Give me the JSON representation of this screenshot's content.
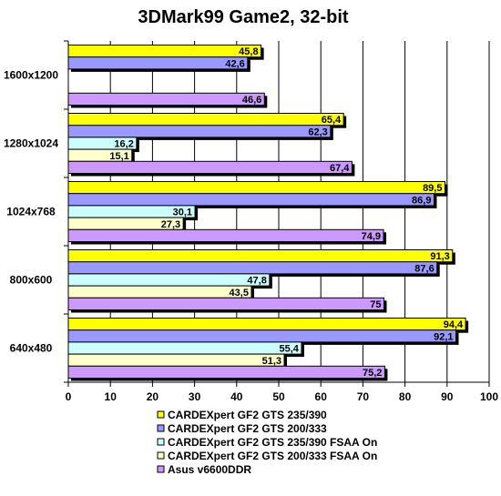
{
  "chart_data": {
    "type": "bar",
    "orientation": "horizontal",
    "title": "3DMark99 Game2, 32-bit",
    "categories": [
      "1600x1200",
      "1280x1024",
      "1024x768",
      "800x600",
      "640x480"
    ],
    "xlim": [
      0,
      100
    ],
    "xticks": [
      0,
      10,
      20,
      30,
      40,
      50,
      60,
      70,
      80,
      90,
      100
    ],
    "grid": "vertical",
    "legend_position": "bottom",
    "series": [
      {
        "name": "CARDEXpert GF2 GTS 235/390",
        "color": "#ffff00",
        "values": [
          45.8,
          65.4,
          89.5,
          91.3,
          94.4
        ],
        "labels": [
          "45,8",
          "65,4",
          "89,5",
          "91,3",
          "94,4"
        ]
      },
      {
        "name": "CARDEXpert GF2 GTS 200/333",
        "color": "#9999ff",
        "values": [
          42.6,
          62.3,
          86.9,
          87.6,
          92.1
        ],
        "labels": [
          "42,6",
          "62,3",
          "86,9",
          "87,6",
          "92,1"
        ]
      },
      {
        "name": "CARDEXpert GF2 GTS 235/390 FSAA On",
        "color": "#ccffff",
        "values": [
          null,
          16.2,
          30.1,
          47.8,
          55.4
        ],
        "labels": [
          null,
          "16,2",
          "30,1",
          "47,8",
          "55,4"
        ]
      },
      {
        "name": "CARDEXpert GF2 GTS 200/333 FSAA On",
        "color": "#ffffcc",
        "values": [
          null,
          15.1,
          27.3,
          43.5,
          51.3
        ],
        "labels": [
          null,
          "15,1",
          "27,3",
          "43,5",
          "51,3"
        ]
      },
      {
        "name": "Asus v6600DDR",
        "color": "#cc99ff",
        "values": [
          46.6,
          67.4,
          74.9,
          75,
          75.2
        ],
        "labels": [
          "46,6",
          "67,4",
          "74,9",
          "75",
          "75,2"
        ]
      }
    ]
  }
}
